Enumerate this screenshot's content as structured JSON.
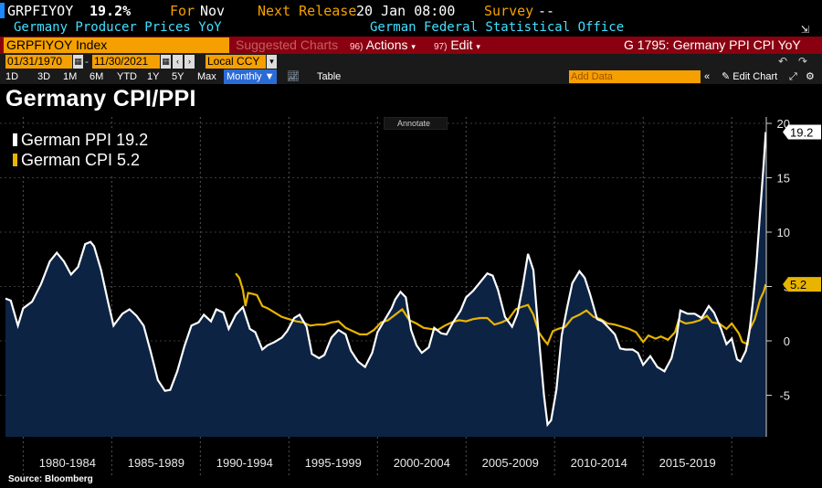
{
  "header": {
    "ticker": "GRPFIYOY",
    "value": "19.2%",
    "for_label": "For",
    "for_value": "Nov",
    "next_release_label": "Next Release",
    "next_release_value": "20 Jan 08:00",
    "survey_label": "Survey",
    "survey_value": "--",
    "description": "Germany Producer Prices YoY",
    "source_org": "German Federal Statistical Office"
  },
  "toolbar": {
    "security": "GRPFIYOY Index",
    "suggested_charts": "Suggested Charts",
    "actions_num": "96)",
    "actions_label": "Actions",
    "edit_num": "97)",
    "edit_label": "Edit",
    "chart_name": "G 1795: Germany PPI CPI YoY",
    "start_date": "01/31/1970",
    "end_date": "11/30/2021",
    "currency": "Local CCY",
    "ranges": [
      "1D",
      "3D",
      "1M",
      "6M",
      "YTD",
      "1Y",
      "5Y",
      "Max"
    ],
    "frequency": "Monthly",
    "table_label": "Table",
    "add_data_placeholder": "Add Data",
    "edit_chart_label": "Edit Chart"
  },
  "annotate_label": "Annotate",
  "source": "Source: Bloomberg",
  "colors": {
    "ppi": "#ffffff",
    "cpi": "#e8b400",
    "area_fill": "#0c2344",
    "toolbar_red": "#8b0010",
    "amber": "#f5a000"
  },
  "chart_data": {
    "type": "line",
    "title": "Germany CPI/PPI",
    "x_range": [
      1979.0,
      2022.5
    ],
    "ylim": [
      -8,
      21
    ],
    "y_ticks": [
      20,
      15,
      10,
      5,
      0,
      -5
    ],
    "y_tick_labels": [
      "20",
      "15",
      "10",
      "5",
      "0",
      "-5"
    ],
    "x_labels": [
      {
        "label": "1980-1984",
        "x": 1982.5
      },
      {
        "label": "1985-1989",
        "x": 1987.5
      },
      {
        "label": "1990-1994",
        "x": 1992.5
      },
      {
        "label": "1995-1999",
        "x": 1997.5
      },
      {
        "label": "2000-2004",
        "x": 2002.5
      },
      {
        "label": "2005-2009",
        "x": 2007.5
      },
      {
        "label": "2010-2014",
        "x": 2012.5
      },
      {
        "label": "2015-2019",
        "x": 2017.5
      }
    ],
    "x_separators": [
      1980,
      1985,
      1990,
      1995,
      2000,
      2005,
      2010,
      2015,
      2020
    ],
    "grid": true,
    "legend_position": "top-left",
    "series": [
      {
        "name": "German PPI",
        "last_value": "19.2",
        "color": "#ffffff",
        "fill": true,
        "points": [
          [
            1979.0,
            3.9
          ],
          [
            1979.3,
            3.7
          ],
          [
            1979.7,
            1.4
          ],
          [
            1980.0,
            3.0
          ],
          [
            1980.5,
            3.6
          ],
          [
            1981.0,
            5.2
          ],
          [
            1981.5,
            7.3
          ],
          [
            1981.9,
            8.1
          ],
          [
            1982.3,
            7.3
          ],
          [
            1982.7,
            6.1
          ],
          [
            1983.1,
            6.8
          ],
          [
            1983.5,
            8.9
          ],
          [
            1983.8,
            9.1
          ],
          [
            1984.0,
            8.7
          ],
          [
            1984.4,
            6.5
          ],
          [
            1984.8,
            3.5
          ],
          [
            1985.1,
            1.4
          ],
          [
            1985.6,
            2.5
          ],
          [
            1986.0,
            2.9
          ],
          [
            1986.4,
            2.3
          ],
          [
            1986.8,
            1.4
          ],
          [
            1987.2,
            -1.0
          ],
          [
            1987.6,
            -3.6
          ],
          [
            1988.0,
            -4.6
          ],
          [
            1988.3,
            -4.5
          ],
          [
            1988.7,
            -2.8
          ],
          [
            1989.1,
            -0.5
          ],
          [
            1989.5,
            1.4
          ],
          [
            1989.9,
            1.7
          ],
          [
            1990.2,
            2.4
          ],
          [
            1990.6,
            1.8
          ],
          [
            1990.9,
            2.9
          ],
          [
            1991.3,
            2.6
          ],
          [
            1991.6,
            1.1
          ],
          [
            1992.0,
            2.4
          ],
          [
            1992.4,
            3.1
          ],
          [
            1992.8,
            1.1
          ],
          [
            1993.1,
            0.8
          ],
          [
            1993.5,
            -0.8
          ],
          [
            1993.8,
            -0.4
          ],
          [
            1994.2,
            -0.1
          ],
          [
            1994.6,
            0.3
          ],
          [
            1994.9,
            0.9
          ],
          [
            1995.3,
            2.1
          ],
          [
            1995.6,
            2.4
          ],
          [
            1996.0,
            1.3
          ],
          [
            1996.3,
            -1.2
          ],
          [
            1996.7,
            -1.6
          ],
          [
            1997.0,
            -1.3
          ],
          [
            1997.4,
            0.3
          ],
          [
            1997.8,
            1.0
          ],
          [
            1998.2,
            0.6
          ],
          [
            1998.5,
            -0.9
          ],
          [
            1998.9,
            -1.9
          ],
          [
            1999.3,
            -2.4
          ],
          [
            1999.7,
            -1.1
          ],
          [
            2000.0,
            0.8
          ],
          [
            2000.4,
            1.9
          ],
          [
            2000.8,
            3.0
          ],
          [
            2001.0,
            3.8
          ],
          [
            2001.3,
            4.5
          ],
          [
            2001.6,
            4.0
          ],
          [
            2001.9,
            1.0
          ],
          [
            2002.2,
            -0.4
          ],
          [
            2002.5,
            -1.1
          ],
          [
            2002.9,
            -0.6
          ],
          [
            2003.2,
            1.2
          ],
          [
            2003.6,
            0.7
          ],
          [
            2003.9,
            0.6
          ],
          [
            2004.3,
            1.8
          ],
          [
            2004.7,
            2.8
          ],
          [
            2005.0,
            4.0
          ],
          [
            2005.4,
            4.6
          ],
          [
            2005.8,
            5.4
          ],
          [
            2006.2,
            6.2
          ],
          [
            2006.5,
            6.0
          ],
          [
            2006.8,
            4.7
          ],
          [
            2007.2,
            2.2
          ],
          [
            2007.6,
            1.3
          ],
          [
            2007.9,
            2.5
          ],
          [
            2008.2,
            5.0
          ],
          [
            2008.5,
            8.0
          ],
          [
            2008.8,
            6.5
          ],
          [
            2009.1,
            0.5
          ],
          [
            2009.4,
            -5.0
          ],
          [
            2009.6,
            -7.7
          ],
          [
            2009.8,
            -7.3
          ],
          [
            2010.1,
            -4.5
          ],
          [
            2010.4,
            0.5
          ],
          [
            2010.7,
            3.0
          ],
          [
            2011.0,
            5.3
          ],
          [
            2011.4,
            6.4
          ],
          [
            2011.7,
            5.8
          ],
          [
            2012.0,
            4.3
          ],
          [
            2012.4,
            2.0
          ],
          [
            2012.7,
            1.8
          ],
          [
            2013.0,
            1.3
          ],
          [
            2013.4,
            0.6
          ],
          [
            2013.7,
            -0.7
          ],
          [
            2014.0,
            -0.8
          ],
          [
            2014.4,
            -0.8
          ],
          [
            2014.7,
            -1.1
          ],
          [
            2015.0,
            -2.2
          ],
          [
            2015.4,
            -1.4
          ],
          [
            2015.8,
            -2.4
          ],
          [
            2016.2,
            -2.8
          ],
          [
            2016.6,
            -1.6
          ],
          [
            2016.9,
            0.5
          ],
          [
            2017.1,
            2.8
          ],
          [
            2017.5,
            2.5
          ],
          [
            2017.9,
            2.5
          ],
          [
            2018.3,
            2.1
          ],
          [
            2018.7,
            3.2
          ],
          [
            2019.0,
            2.6
          ],
          [
            2019.4,
            1.1
          ],
          [
            2019.7,
            -0.3
          ],
          [
            2020.0,
            0.2
          ],
          [
            2020.3,
            -1.7
          ],
          [
            2020.5,
            -1.9
          ],
          [
            2020.8,
            -0.9
          ],
          [
            2021.0,
            0.9
          ],
          [
            2021.2,
            3.7
          ],
          [
            2021.4,
            7.2
          ],
          [
            2021.6,
            11.8
          ],
          [
            2021.8,
            16.2
          ],
          [
            2021.92,
            19.2
          ]
        ]
      },
      {
        "name": "German CPI",
        "last_value": "5.2",
        "color": "#e8b400",
        "fill": false,
        "points": [
          [
            1992.0,
            6.2
          ],
          [
            1992.2,
            5.8
          ],
          [
            1992.4,
            4.7
          ],
          [
            1992.55,
            3.2
          ],
          [
            1992.7,
            4.4
          ],
          [
            1993.0,
            4.3
          ],
          [
            1993.2,
            4.2
          ],
          [
            1993.5,
            3.2
          ],
          [
            1993.8,
            3.0
          ],
          [
            1994.2,
            2.6
          ],
          [
            1994.6,
            2.2
          ],
          [
            1995.0,
            2.0
          ],
          [
            1995.4,
            1.8
          ],
          [
            1995.8,
            1.7
          ],
          [
            1996.2,
            1.4
          ],
          [
            1996.6,
            1.5
          ],
          [
            1997.0,
            1.5
          ],
          [
            1997.4,
            1.7
          ],
          [
            1997.8,
            1.8
          ],
          [
            1998.2,
            1.2
          ],
          [
            1998.6,
            0.9
          ],
          [
            1999.0,
            0.6
          ],
          [
            1999.4,
            0.6
          ],
          [
            1999.8,
            1.0
          ],
          [
            2000.2,
            1.7
          ],
          [
            2000.6,
            1.9
          ],
          [
            2001.0,
            2.4
          ],
          [
            2001.4,
            2.9
          ],
          [
            2001.8,
            1.9
          ],
          [
            2002.2,
            1.6
          ],
          [
            2002.6,
            1.2
          ],
          [
            2003.0,
            1.1
          ],
          [
            2003.4,
            1.0
          ],
          [
            2003.8,
            1.4
          ],
          [
            2004.2,
            1.7
          ],
          [
            2004.6,
            1.9
          ],
          [
            2005.0,
            1.8
          ],
          [
            2005.4,
            2.0
          ],
          [
            2005.8,
            2.1
          ],
          [
            2006.2,
            2.1
          ],
          [
            2006.6,
            1.5
          ],
          [
            2007.0,
            1.7
          ],
          [
            2007.4,
            2.0
          ],
          [
            2007.8,
            2.9
          ],
          [
            2008.1,
            3.1
          ],
          [
            2008.5,
            3.3
          ],
          [
            2008.8,
            2.4
          ],
          [
            2009.1,
            0.8
          ],
          [
            2009.4,
            0.1
          ],
          [
            2009.6,
            -0.3
          ],
          [
            2009.9,
            0.9
          ],
          [
            2010.2,
            1.1
          ],
          [
            2010.6,
            1.3
          ],
          [
            2011.0,
            2.1
          ],
          [
            2011.4,
            2.4
          ],
          [
            2011.8,
            2.8
          ],
          [
            2012.2,
            2.2
          ],
          [
            2012.6,
            2.0
          ],
          [
            2013.0,
            1.6
          ],
          [
            2013.4,
            1.5
          ],
          [
            2013.8,
            1.3
          ],
          [
            2014.2,
            1.1
          ],
          [
            2014.6,
            0.8
          ],
          [
            2015.0,
            -0.1
          ],
          [
            2015.3,
            0.5
          ],
          [
            2015.7,
            0.2
          ],
          [
            2016.0,
            0.4
          ],
          [
            2016.4,
            0.1
          ],
          [
            2016.8,
            0.8
          ],
          [
            2017.0,
            1.9
          ],
          [
            2017.4,
            1.6
          ],
          [
            2017.8,
            1.7
          ],
          [
            2018.2,
            1.9
          ],
          [
            2018.6,
            2.3
          ],
          [
            2018.9,
            1.7
          ],
          [
            2019.3,
            1.6
          ],
          [
            2019.7,
            1.1
          ],
          [
            2020.0,
            1.6
          ],
          [
            2020.4,
            0.7
          ],
          [
            2020.6,
            -0.1
          ],
          [
            2020.9,
            -0.3
          ],
          [
            2021.0,
            1.0
          ],
          [
            2021.3,
            2.0
          ],
          [
            2021.6,
            3.8
          ],
          [
            2021.8,
            4.5
          ],
          [
            2021.92,
            5.2
          ]
        ]
      }
    ]
  }
}
